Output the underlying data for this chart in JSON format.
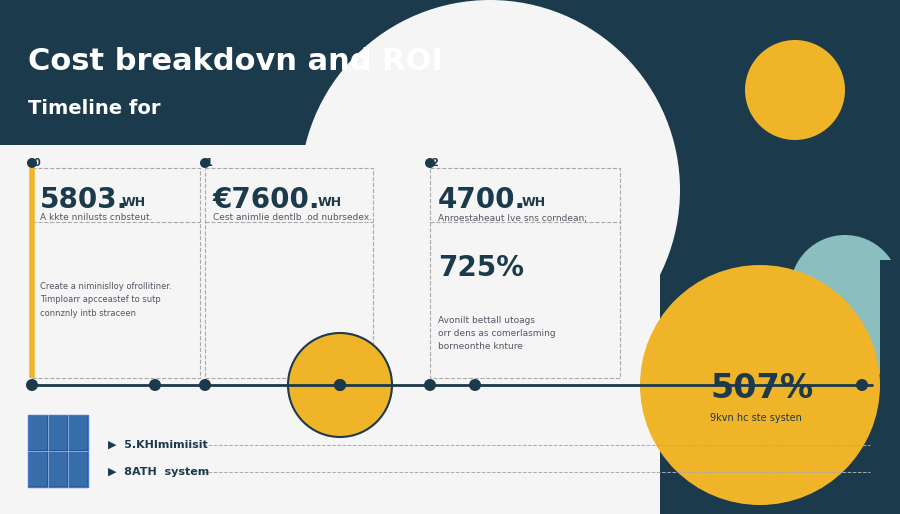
{
  "title_line1": "Cost breakdovn and ROI",
  "title_line2": "Timeline for",
  "header_bg": "#1b3a4b",
  "content_bg": "#f5f5f5",
  "dark_bg": "#1b3a4b",
  "accent_yellow": "#f0b429",
  "accent_teal": "#8bbfbf",
  "text_dark": "#1b3a4b",
  "text_light": "#ffffff",
  "stat1_value": "5803.",
  "stat1_unit": "WH",
  "stat1_desc": "A kkte nnilusts cnbsteut.",
  "stat1_subdesc": "Create a niminislloy ofrollitiner.\nTimploarr apcceastef to sutp\nconnznly intb straceen",
  "stat2_value": "€7600.",
  "stat2_unit": "WH",
  "stat2_desc": "Cest animlie dentlb .od nubrsedex.",
  "stat3_value": "4700.",
  "stat3_unit": "WH",
  "stat3_desc": "Anroestaheaut lve sns corndean;",
  "stat4_value": "725%",
  "stat4_desc": "Avonilt bettall utoags\norr dens as comerlasming\nborneonthe knture",
  "stat5_value": "507%",
  "stat5_desc": "9kvn hc ste systen",
  "legend1": "5.KHImimiisit",
  "legend2": "8ATH  system"
}
